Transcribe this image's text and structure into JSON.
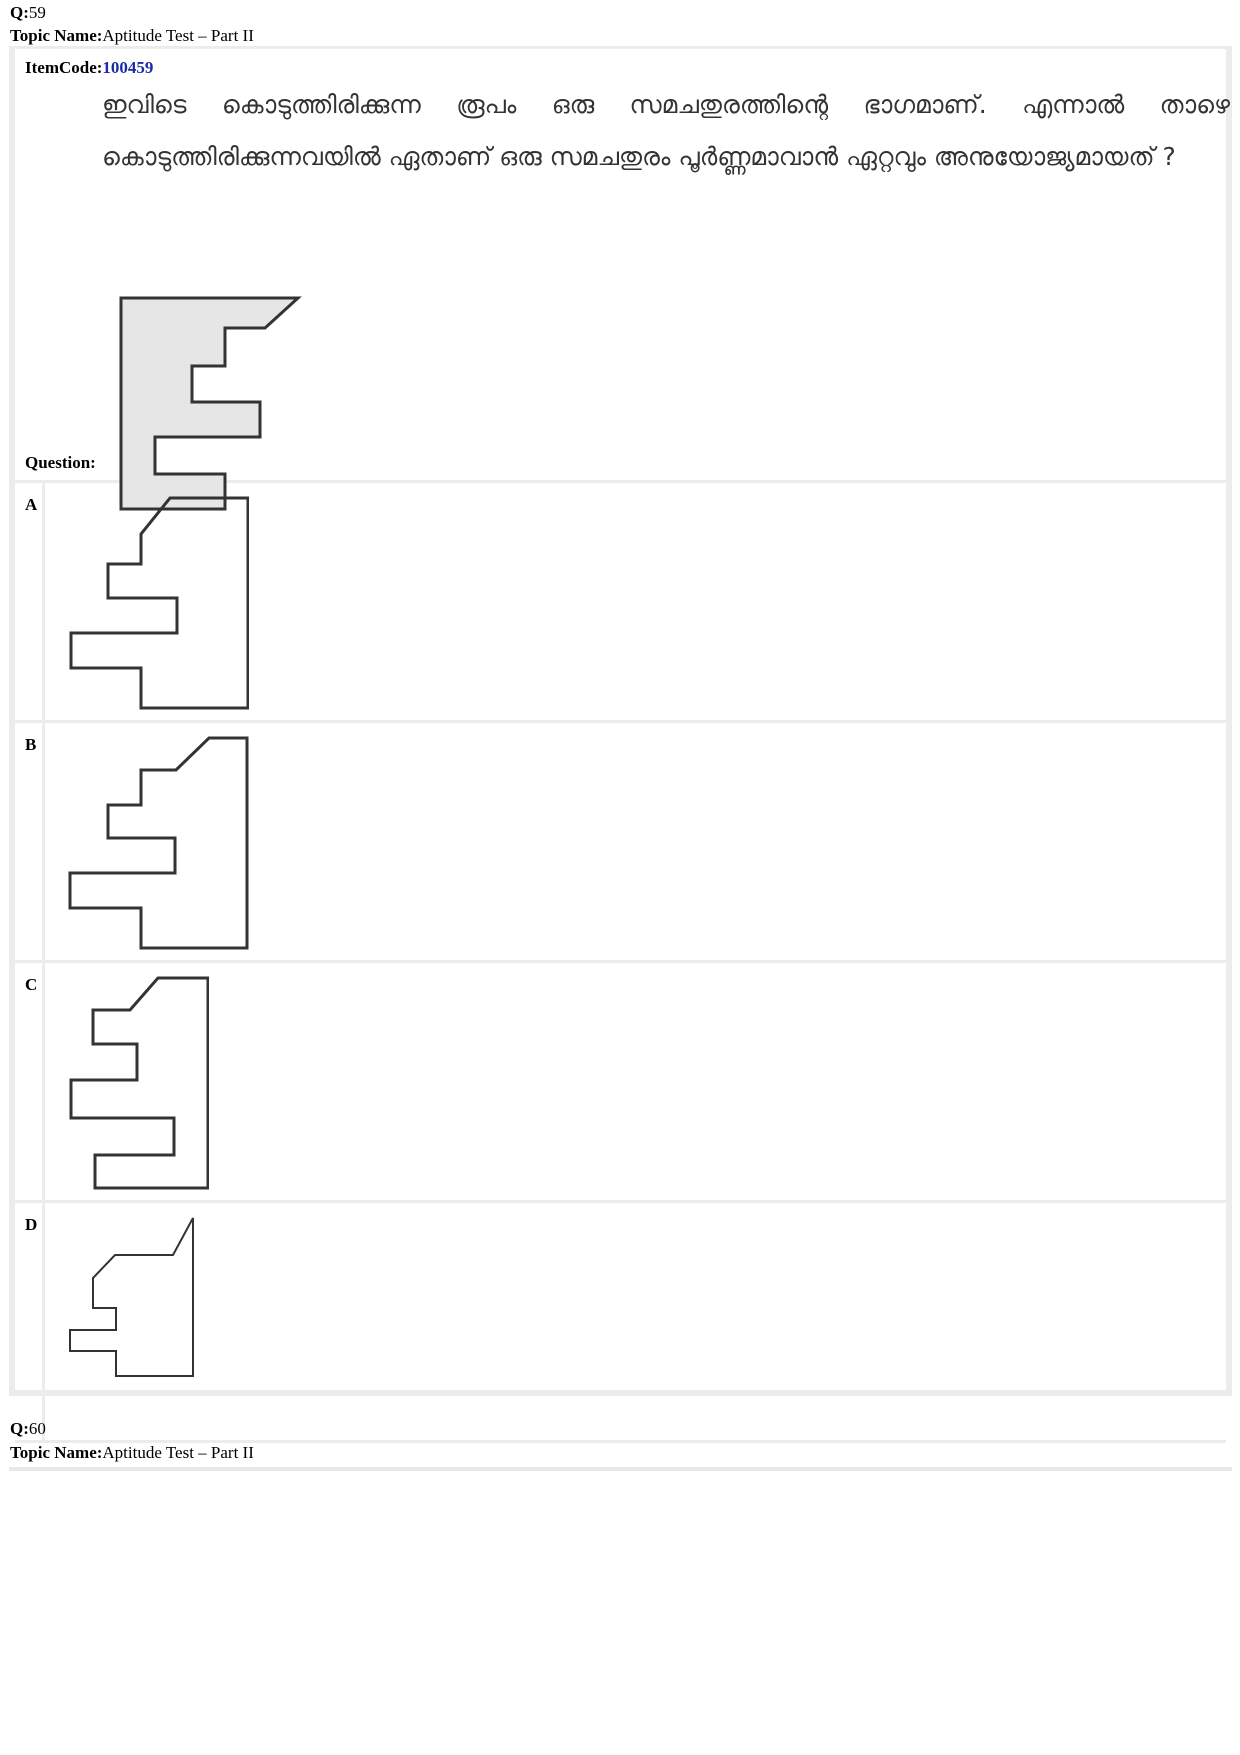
{
  "q59": {
    "q_label": "Q:",
    "q_number": "59",
    "topic_label": "Topic Name:",
    "topic_value": "Aptitude Test – Part II",
    "itemcode_label": "ItemCode:",
    "itemcode_value": "100459",
    "question_text": "ഇവിടെ കൊടുത്തിരിക്കുന്ന രൂപം ഒരു സമചതുരത്തിന്റെ ഭാഗമാണ്. എന്നാൽ താഴെ കൊടുത്തിരിക്കുന്നവയിൽ ഏതാണ് ഒരു സമചതുരം പൂർണ്ണമാവാൻ ഏറ്റവും അനുയോജ്യമായത് ?",
    "question_label": "Question:",
    "options": [
      {
        "label": "A"
      },
      {
        "label": "B"
      },
      {
        "label": "C"
      },
      {
        "label": "D"
      }
    ]
  },
  "q60": {
    "q_label": "Q:",
    "q_number": "60",
    "topic_label": "Topic Name:",
    "topic_value": "Aptitude Test – Part II"
  },
  "colors": {
    "figure_fill": "#e6e6e6",
    "figure_stroke": "#333333",
    "itemcode": "#1a2aa8"
  }
}
